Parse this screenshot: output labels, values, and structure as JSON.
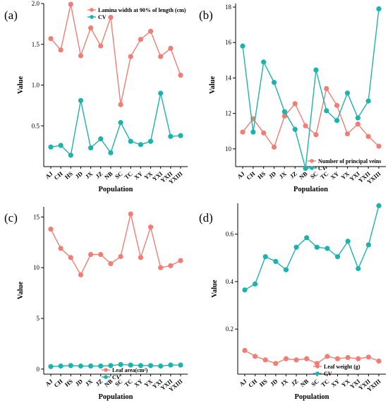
{
  "categories": [
    "AJ",
    "CH",
    "HS",
    "JD",
    "JX",
    "JZ",
    "NB",
    "SC",
    "TC",
    "XY",
    "YX",
    "YXI",
    "YXII",
    "YXIII"
  ],
  "colors": {
    "trait": "#F07E74",
    "cv": "#1EB2AE"
  },
  "chart_data": [
    {
      "type": "line",
      "panel_label": "(a)",
      "xlabel": "Population",
      "ylabel": "Value",
      "ylim": [
        0,
        2.0
      ],
      "yticks": [
        "0.5",
        "1.0",
        "1.5",
        "2.0"
      ],
      "grid": false,
      "legend_position": "top-right",
      "series": [
        {
          "name": "Lamina width at 90% of length (cm)",
          "values": [
            1.57,
            1.43,
            1.99,
            1.36,
            1.7,
            1.48,
            1.83,
            0.76,
            1.35,
            1.56,
            1.66,
            1.35,
            1.45,
            1.12
          ]
        },
        {
          "name": "CV",
          "values": [
            0.24,
            0.26,
            0.14,
            0.81,
            0.23,
            0.34,
            0.17,
            0.54,
            0.31,
            0.27,
            0.31,
            0.9,
            0.37,
            0.38
          ]
        }
      ]
    },
    {
      "type": "line",
      "panel_label": "(b)",
      "xlabel": "Population",
      "ylabel": "Value",
      "ylim": [
        9.0,
        18.2
      ],
      "yticks": [
        "10",
        "12",
        "14",
        "16",
        "18"
      ],
      "grid": false,
      "legend_position": "bottom-right",
      "series": [
        {
          "name": "Number of principal veins",
          "values": [
            10.95,
            11.7,
            10.9,
            10.1,
            11.85,
            12.55,
            11.3,
            10.8,
            13.4,
            12.45,
            10.85,
            11.4,
            10.7,
            10.15
          ]
        },
        {
          "name": "CV",
          "values": [
            15.8,
            10.95,
            14.9,
            13.75,
            12.1,
            11.1,
            8.9,
            14.45,
            12.15,
            11.6,
            13.15,
            11.75,
            12.7,
            17.9
          ]
        }
      ]
    },
    {
      "type": "line",
      "panel_label": "(c)",
      "xlabel": "Population",
      "ylabel": "Value",
      "ylim": [
        -0.5,
        16.0
      ],
      "yticks": [
        "0",
        "5",
        "10",
        "15"
      ],
      "grid": false,
      "legend_position": "bottom-right",
      "series": [
        {
          "name": "Leaf area(cm²)",
          "values": [
            13.8,
            11.9,
            11.0,
            9.3,
            11.3,
            11.3,
            10.4,
            11.1,
            15.3,
            11.0,
            14.0,
            10.0,
            10.2,
            10.7
          ]
        },
        {
          "name": "CV",
          "values": [
            0.25,
            0.3,
            0.35,
            0.3,
            0.3,
            0.3,
            0.35,
            0.45,
            0.4,
            0.35,
            0.35,
            0.3,
            0.4,
            0.4
          ]
        }
      ]
    },
    {
      "type": "line",
      "panel_label": "(d)",
      "xlabel": "Population",
      "ylabel": "Value",
      "ylim": [
        0.01,
        0.73
      ],
      "yticks": [
        "0.2",
        "0.4",
        "0.6"
      ],
      "grid": false,
      "legend_position": "bottom-right",
      "series": [
        {
          "name": "Leaf weight (g)",
          "values": [
            0.11,
            0.085,
            0.07,
            0.055,
            0.075,
            0.07,
            0.075,
            0.055,
            0.085,
            0.075,
            0.08,
            0.075,
            0.082,
            0.065
          ]
        },
        {
          "name": "CV",
          "values": [
            0.365,
            0.39,
            0.505,
            0.485,
            0.45,
            0.545,
            0.585,
            0.545,
            0.54,
            0.505,
            0.57,
            0.455,
            0.555,
            0.72
          ]
        }
      ]
    }
  ]
}
